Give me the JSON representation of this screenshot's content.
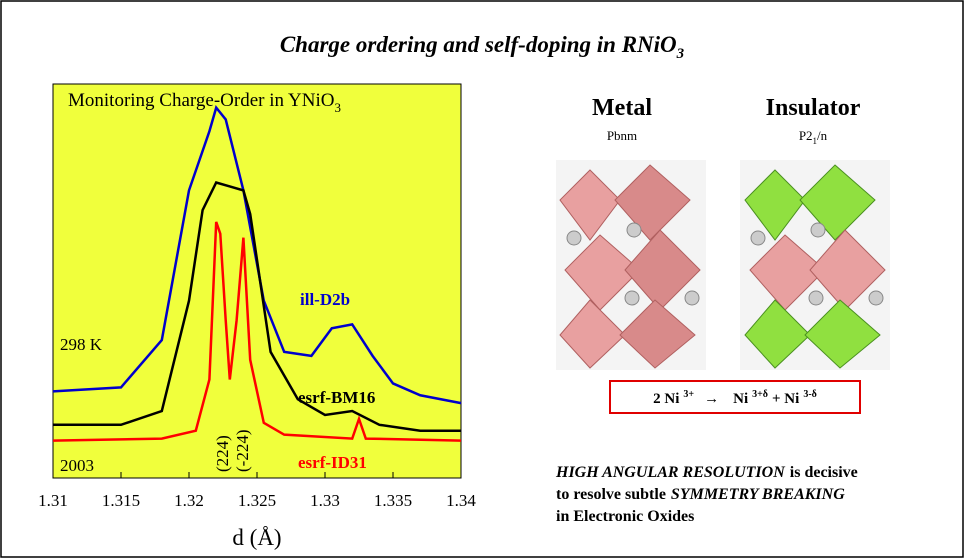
{
  "slide": {
    "title": {
      "text": "Charge ordering and self-doping in RNiO",
      "sub": "3"
    },
    "structures": [
      {
        "name": "Metal",
        "group": {
          "text": "Pbnm"
        }
      },
      {
        "name": "Insulator",
        "group": {
          "text": "P2",
          "sub": "1",
          "rest": "/n"
        }
      }
    ],
    "equation": {
      "a": "2 Ni",
      "a_sup": "3+",
      "arrow": "→",
      "b": "Ni",
      "b_sup": "3+δ",
      "c": "+ Ni",
      "c_sup": "3-δ"
    },
    "note": {
      "l1a": "HIGH ANGULAR RESOLUTION",
      "l1b": "is decisive",
      "l2a": "to resolve subtle",
      "l2b": "SYMMETRY BREAKING",
      "l3": "in Electronic Oxides"
    }
  },
  "chart_data": {
    "type": "line",
    "title": {
      "text": "Monitoring Charge-Order in YNiO",
      "sub": "3"
    },
    "xlabel": "d (Å)",
    "annotations": [
      "298  K",
      "2003",
      "(224)",
      "(-224)"
    ],
    "xlim": [
      1.31,
      1.34
    ],
    "xticks": [
      1.31,
      1.315,
      1.32,
      1.325,
      1.33,
      1.335,
      1.34
    ],
    "ylim": [
      0,
      100
    ],
    "background": "#f0ff3c",
    "series": [
      {
        "name": "ill-D2b",
        "color": "#0000cc",
        "x": [
          1.31,
          1.315,
          1.318,
          1.32,
          1.3215,
          1.322,
          1.3227,
          1.324,
          1.3255,
          1.327,
          1.329,
          1.3305,
          1.332,
          1.3335,
          1.335,
          1.337,
          1.34
        ],
        "values": [
          22,
          23,
          35,
          73,
          88,
          94,
          91,
          73,
          45,
          32,
          31,
          38,
          39,
          31,
          24,
          21,
          19
        ]
      },
      {
        "name": "esrf-BM16",
        "color": "#000000",
        "x": [
          1.31,
          1.315,
          1.318,
          1.32,
          1.321,
          1.322,
          1.323,
          1.324,
          1.3245,
          1.326,
          1.328,
          1.33,
          1.332,
          1.334,
          1.337,
          1.34
        ],
        "values": [
          13.5,
          13.5,
          17,
          45,
          68,
          75,
          74,
          73,
          67,
          32,
          20,
          16,
          17,
          13.5,
          12,
          12
        ]
      },
      {
        "name": "esrf-ID31",
        "color": "#ff0000",
        "x": [
          1.31,
          1.318,
          1.3205,
          1.3215,
          1.322,
          1.3223,
          1.3227,
          1.323,
          1.3235,
          1.324,
          1.3245,
          1.3255,
          1.327,
          1.332,
          1.3325,
          1.333,
          1.34
        ],
        "values": [
          9.5,
          10,
          12,
          25,
          65,
          62,
          40,
          25,
          40,
          61,
          30,
          14,
          11,
          10,
          15,
          10,
          9.5
        ]
      }
    ]
  }
}
